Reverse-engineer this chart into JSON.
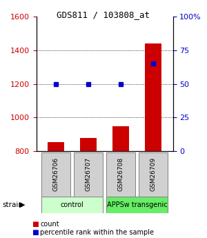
{
  "title": "GDS811 / 103808_at",
  "samples": [
    "GSM26706",
    "GSM26707",
    "GSM26708",
    "GSM26709"
  ],
  "count_values": [
    855,
    880,
    950,
    1440
  ],
  "percentile_values": [
    50,
    50,
    50,
    65
  ],
  "ylim_left": [
    800,
    1600
  ],
  "ylim_right": [
    0,
    100
  ],
  "yticks_left": [
    800,
    1000,
    1200,
    1400,
    1600
  ],
  "yticks_right": [
    0,
    25,
    50,
    75,
    100
  ],
  "ytick_labels_right": [
    "0",
    "25",
    "50",
    "75",
    "100%"
  ],
  "bar_color": "#cc0000",
  "dot_color": "#0000cc",
  "bar_width": 0.5,
  "groups": [
    {
      "label": "control",
      "samples": [
        0,
        1
      ],
      "color": "#ccffcc"
    },
    {
      "label": "APPSw transgenic",
      "samples": [
        2,
        3
      ],
      "color": "#66ee66"
    }
  ],
  "strain_label": "strain",
  "legend_items": [
    {
      "color": "#cc0000",
      "label": "count"
    },
    {
      "color": "#0000cc",
      "label": "percentile rank within the sample"
    }
  ],
  "bg_color": "#ffffff",
  "left_axis_color": "#cc0000",
  "right_axis_color": "#0000cc",
  "title_font": "monospace",
  "title_fontsize": 9
}
